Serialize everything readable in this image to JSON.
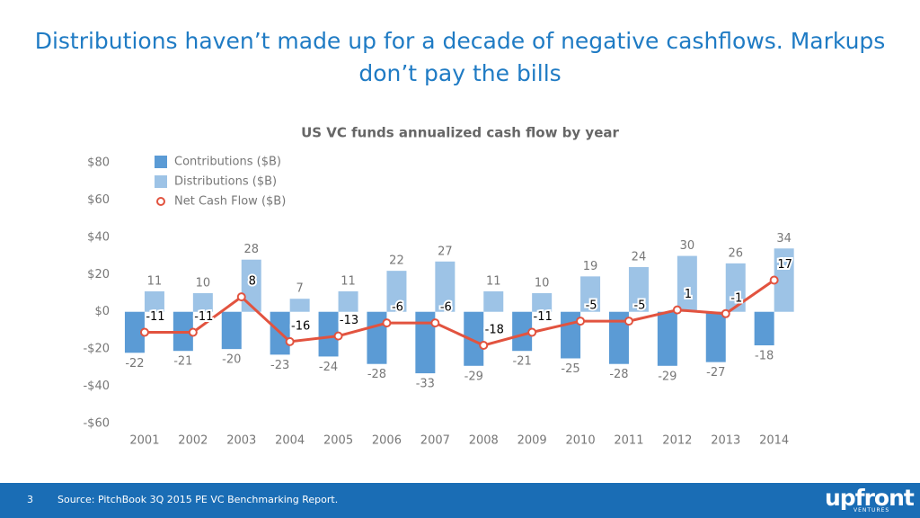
{
  "slide": {
    "title": "Distributions haven’t made up for a decade of negative cashflows. Markups don’t pay the bills",
    "page_number": "3",
    "source": "Source: PitchBook 3Q 2015 PE VC Benchmarking Report.",
    "logo": "upfront",
    "logo_sub": "VENTURES"
  },
  "chart_data": {
    "type": "bar",
    "title": "US VC funds annualized cash flow by year",
    "categories": [
      "2001",
      "2002",
      "2003",
      "2004",
      "2005",
      "2006",
      "2007",
      "2008",
      "2009",
      "2010",
      "2011",
      "2012",
      "2013",
      "2014"
    ],
    "series": [
      {
        "name": "Contributions ($B)",
        "type": "bar",
        "color": "#5b9bd5",
        "values": [
          -22,
          -21,
          -20,
          -23,
          -24,
          -28,
          -33,
          -29,
          -21,
          -25,
          -28,
          -29,
          -27,
          -18
        ]
      },
      {
        "name": "Distributions ($B)",
        "type": "bar",
        "color": "#9dc3e6",
        "values": [
          11,
          10,
          28,
          7,
          11,
          22,
          27,
          11,
          10,
          19,
          24,
          30,
          26,
          34
        ]
      },
      {
        "name": "Net Cash Flow ($B)",
        "type": "line",
        "color": "#e2533f",
        "values": [
          -11,
          -11,
          8,
          -16,
          -13,
          -6,
          -6,
          -18,
          -11,
          -5,
          -5,
          1,
          -1,
          17
        ]
      }
    ],
    "ylim": [
      -60,
      80
    ],
    "yticks": [
      {
        "value": -60,
        "label": "-$60"
      },
      {
        "value": -40,
        "label": "-$40"
      },
      {
        "value": -20,
        "label": "-$20"
      },
      {
        "value": 0,
        "label": "$0"
      },
      {
        "value": 20,
        "label": "$20"
      },
      {
        "value": 40,
        "label": "$40"
      },
      {
        "value": 60,
        "label": "$60"
      },
      {
        "value": 80,
        "label": "$80"
      }
    ],
    "grid": false,
    "legend": "top-left"
  }
}
